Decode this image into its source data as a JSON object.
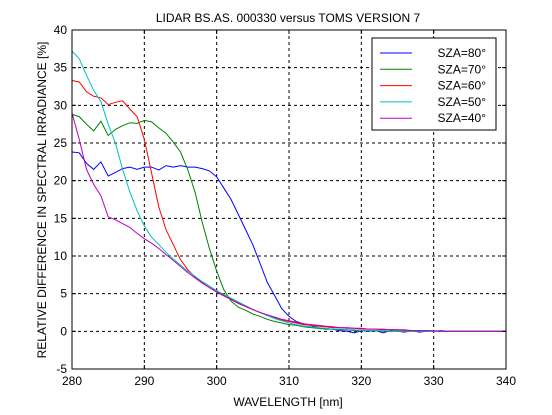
{
  "chart_data": {
    "type": "line",
    "title": "LIDAR BS.AS. 000330 versus TOMS VERSION 7",
    "xlabel": "WAVELENGTH [nm]",
    "ylabel": "RELATIVE DIFFERENCE IN SPECTRAL IRRADIANCE [%]",
    "xlim": [
      280,
      340
    ],
    "ylim": [
      -5,
      40
    ],
    "xticks": [
      280,
      290,
      300,
      310,
      320,
      330,
      340
    ],
    "yticks": [
      -5,
      0,
      5,
      10,
      15,
      20,
      25,
      30,
      35,
      40
    ],
    "grid": true,
    "legend_position": "top-right",
    "series": [
      {
        "name": "SZA=80°",
        "color": "#0000ff",
        "x": [
          280,
          281,
          282,
          283,
          284,
          285,
          286,
          287,
          288,
          289,
          290,
          291,
          292,
          293,
          294,
          295,
          296,
          297,
          298,
          299,
          300,
          301,
          302,
          303,
          304,
          305,
          306,
          307,
          308,
          309,
          310,
          311,
          312,
          313,
          314,
          315,
          316,
          317,
          318,
          319,
          320,
          321,
          322,
          323,
          324,
          325,
          326,
          327,
          328,
          329,
          330,
          331,
          332,
          333,
          334,
          335,
          336,
          337,
          338,
          339,
          340
        ],
        "y": [
          23.8,
          23.7,
          22.3,
          21.5,
          22.5,
          20.6,
          21.1,
          21.6,
          21.8,
          21.5,
          21.8,
          21.8,
          21.4,
          22.0,
          21.8,
          22.0,
          21.8,
          21.8,
          21.6,
          21.3,
          20.5,
          19.0,
          17.5,
          15.5,
          13.5,
          11.5,
          9.0,
          6.5,
          4.8,
          3.0,
          2.0,
          1.3,
          1.0,
          0.8,
          0.5,
          0.3,
          0.3,
          0.1,
          0.0,
          -0.2,
          0.1,
          0.0,
          0.1,
          -0.2,
          0.1,
          0.0,
          -0.1,
          0.1,
          -0.1,
          0.0,
          0.0,
          0.1,
          0.0,
          0.0,
          0.0,
          0.0,
          0.0,
          0.0,
          0.0,
          0.0,
          0.0
        ]
      },
      {
        "name": "SZA=70°",
        "color": "#008000",
        "x": [
          280,
          281,
          282,
          283,
          284,
          285,
          286,
          287,
          288,
          289,
          290,
          291,
          292,
          293,
          294,
          295,
          296,
          297,
          298,
          299,
          300,
          301,
          302,
          303,
          304,
          305,
          306,
          307,
          308,
          309,
          310,
          311,
          312,
          313,
          314,
          315,
          316,
          317,
          318,
          319,
          320,
          321,
          322,
          323,
          324,
          325,
          326,
          327,
          328,
          329,
          330,
          331,
          332,
          333,
          334,
          335,
          336,
          337,
          338,
          339,
          340
        ],
        "y": [
          28.8,
          28.5,
          27.5,
          26.6,
          27.9,
          26.0,
          26.8,
          27.3,
          27.7,
          27.6,
          28.0,
          27.8,
          27.0,
          26.3,
          25.1,
          23.8,
          21.5,
          18.5,
          14.5,
          11.0,
          8.0,
          5.5,
          4.0,
          3.2,
          2.8,
          2.3,
          2.0,
          1.6,
          1.3,
          1.1,
          0.9,
          0.8,
          0.6,
          0.5,
          0.4,
          0.3,
          0.3,
          0.2,
          0.2,
          0.1,
          0.1,
          0.1,
          0.1,
          0.0,
          0.0,
          0.0,
          0.0,
          0.0,
          0.0,
          0.0,
          0.0,
          0.0,
          0.0,
          0.0,
          0.0,
          0.0,
          0.0,
          0.0,
          0.0,
          0.0,
          0.0
        ]
      },
      {
        "name": "SZA=60°",
        "color": "#ff0000",
        "x": [
          280,
          281,
          282,
          283,
          284,
          285,
          286,
          287,
          288,
          289,
          290,
          291,
          292,
          293,
          294,
          295,
          296,
          297,
          298,
          299,
          300,
          301,
          302,
          303,
          304,
          305,
          306,
          307,
          308,
          309,
          310,
          311,
          312,
          313,
          314,
          315,
          316,
          317,
          318,
          319,
          320,
          321,
          322,
          323,
          324,
          325,
          326,
          327,
          328,
          329,
          330,
          331,
          332,
          333,
          334,
          335,
          336,
          337,
          338,
          339,
          340
        ],
        "y": [
          33.3,
          33.1,
          31.8,
          31.2,
          31.0,
          30.1,
          30.4,
          30.6,
          29.5,
          28.5,
          25.5,
          21.0,
          16.5,
          13.5,
          11.5,
          9.5,
          8.2,
          7.2,
          6.5,
          5.8,
          5.3,
          4.8,
          4.3,
          3.8,
          3.3,
          2.9,
          2.5,
          2.1,
          1.8,
          1.5,
          1.3,
          1.1,
          0.9,
          0.8,
          0.7,
          0.6,
          0.5,
          0.5,
          0.4,
          0.4,
          0.3,
          0.3,
          0.3,
          0.2,
          0.2,
          0.2,
          0.1,
          0.1,
          0.1,
          0.1,
          0.0,
          0.0,
          0.0,
          0.0,
          0.0,
          0.0,
          0.0,
          0.0,
          0.0,
          0.0,
          0.0
        ]
      },
      {
        "name": "SZA=50°",
        "color": "#00bfbf",
        "x": [
          280,
          281,
          282,
          283,
          284,
          285,
          286,
          287,
          288,
          289,
          290,
          291,
          292,
          293,
          294,
          295,
          296,
          297,
          298,
          299,
          300,
          301,
          302,
          303,
          304,
          305,
          306,
          307,
          308,
          309,
          310,
          311,
          312,
          313,
          314,
          315,
          316,
          317,
          318,
          319,
          320,
          321,
          322,
          323,
          324,
          325,
          326,
          327,
          328,
          329,
          330,
          331,
          332,
          333,
          334,
          335,
          336,
          337,
          338,
          339,
          340
        ],
        "y": [
          37.2,
          36.2,
          34.0,
          32.0,
          30.5,
          27.5,
          25.0,
          21.5,
          18.5,
          16.0,
          14.0,
          12.5,
          11.5,
          10.5,
          9.6,
          8.8,
          8.0,
          7.3,
          6.6,
          6.0,
          5.4,
          4.9,
          4.4,
          3.9,
          3.4,
          2.9,
          2.5,
          2.1,
          1.7,
          1.4,
          1.1,
          0.9,
          0.7,
          0.6,
          0.5,
          0.4,
          0.3,
          0.3,
          0.2,
          0.2,
          0.1,
          0.1,
          0.1,
          0.1,
          0.0,
          0.0,
          0.0,
          0.0,
          0.0,
          0.0,
          0.0,
          0.0,
          0.0,
          0.0,
          0.0,
          0.0,
          0.0,
          0.0,
          0.0,
          0.0,
          0.0
        ]
      },
      {
        "name": "SZA=40°",
        "color": "#bf00bf",
        "x": [
          280,
          281,
          282,
          283,
          284,
          285,
          286,
          287,
          288,
          289,
          290,
          291,
          292,
          293,
          294,
          295,
          296,
          297,
          298,
          299,
          300,
          301,
          302,
          303,
          304,
          305,
          306,
          307,
          308,
          309,
          310,
          311,
          312,
          313,
          314,
          315,
          316,
          317,
          318,
          319,
          320,
          321,
          322,
          323,
          324,
          325,
          326,
          327,
          328,
          329,
          330,
          331,
          332,
          333,
          334,
          335,
          336,
          337,
          338,
          339,
          340
        ],
        "y": [
          29.0,
          25.5,
          21.5,
          19.5,
          18.0,
          15.2,
          14.8,
          14.3,
          13.8,
          13.0,
          12.3,
          11.7,
          11.0,
          10.2,
          9.4,
          8.6,
          7.8,
          7.1,
          6.4,
          5.8,
          5.2,
          4.7,
          4.2,
          3.7,
          3.3,
          2.9,
          2.5,
          2.2,
          1.9,
          1.6,
          1.4,
          1.2,
          1.0,
          0.9,
          0.8,
          0.7,
          0.6,
          0.5,
          0.5,
          0.4,
          0.4,
          0.3,
          0.3,
          0.3,
          0.2,
          0.2,
          0.2,
          0.1,
          0.1,
          0.1,
          0.1,
          0.0,
          0.0,
          0.0,
          0.0,
          0.0,
          0.0,
          0.0,
          0.0,
          0.0,
          0.0
        ]
      }
    ]
  }
}
